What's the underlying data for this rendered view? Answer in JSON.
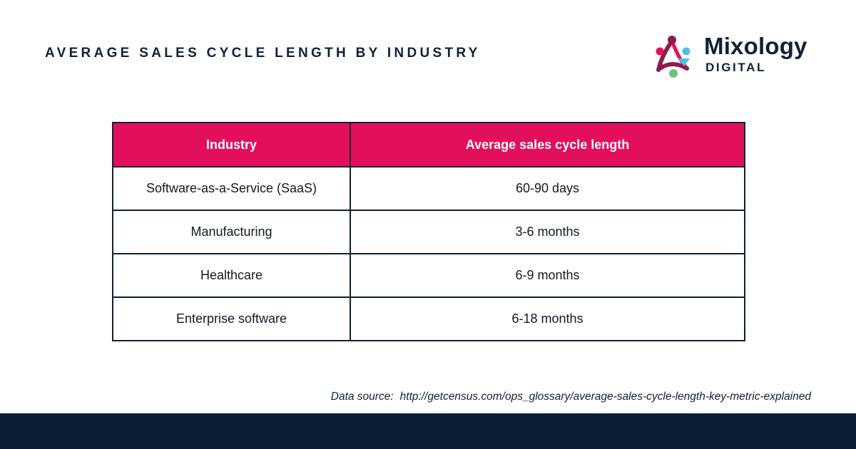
{
  "title": "AVERAGE SALES CYCLE LENGTH BY INDUSTRY",
  "logo": {
    "name": "Mixology",
    "sub": "DIGITAL",
    "colors": [
      "#e30f5d",
      "#4cc3de",
      "#6cc27a",
      "#8d1c4c"
    ]
  },
  "chart_data": {
    "type": "table",
    "columns": [
      "Industry",
      "Average sales cycle length"
    ],
    "rows": [
      [
        "Software-as-a-Service (SaaS)",
        "60-90 days"
      ],
      [
        "Manufacturing",
        "3-6 months"
      ],
      [
        "Healthcare",
        "6-9 months"
      ],
      [
        "Enterprise software",
        "6-18 months"
      ]
    ],
    "header_color": "#e30f5d",
    "border_color": "#0f2235"
  },
  "source": {
    "label": "Data source:",
    "url": "http://getcensus.com/ops_glossary/average-sales-cycle-length-key-metric-explained"
  },
  "footer_color": "#0c1e32"
}
